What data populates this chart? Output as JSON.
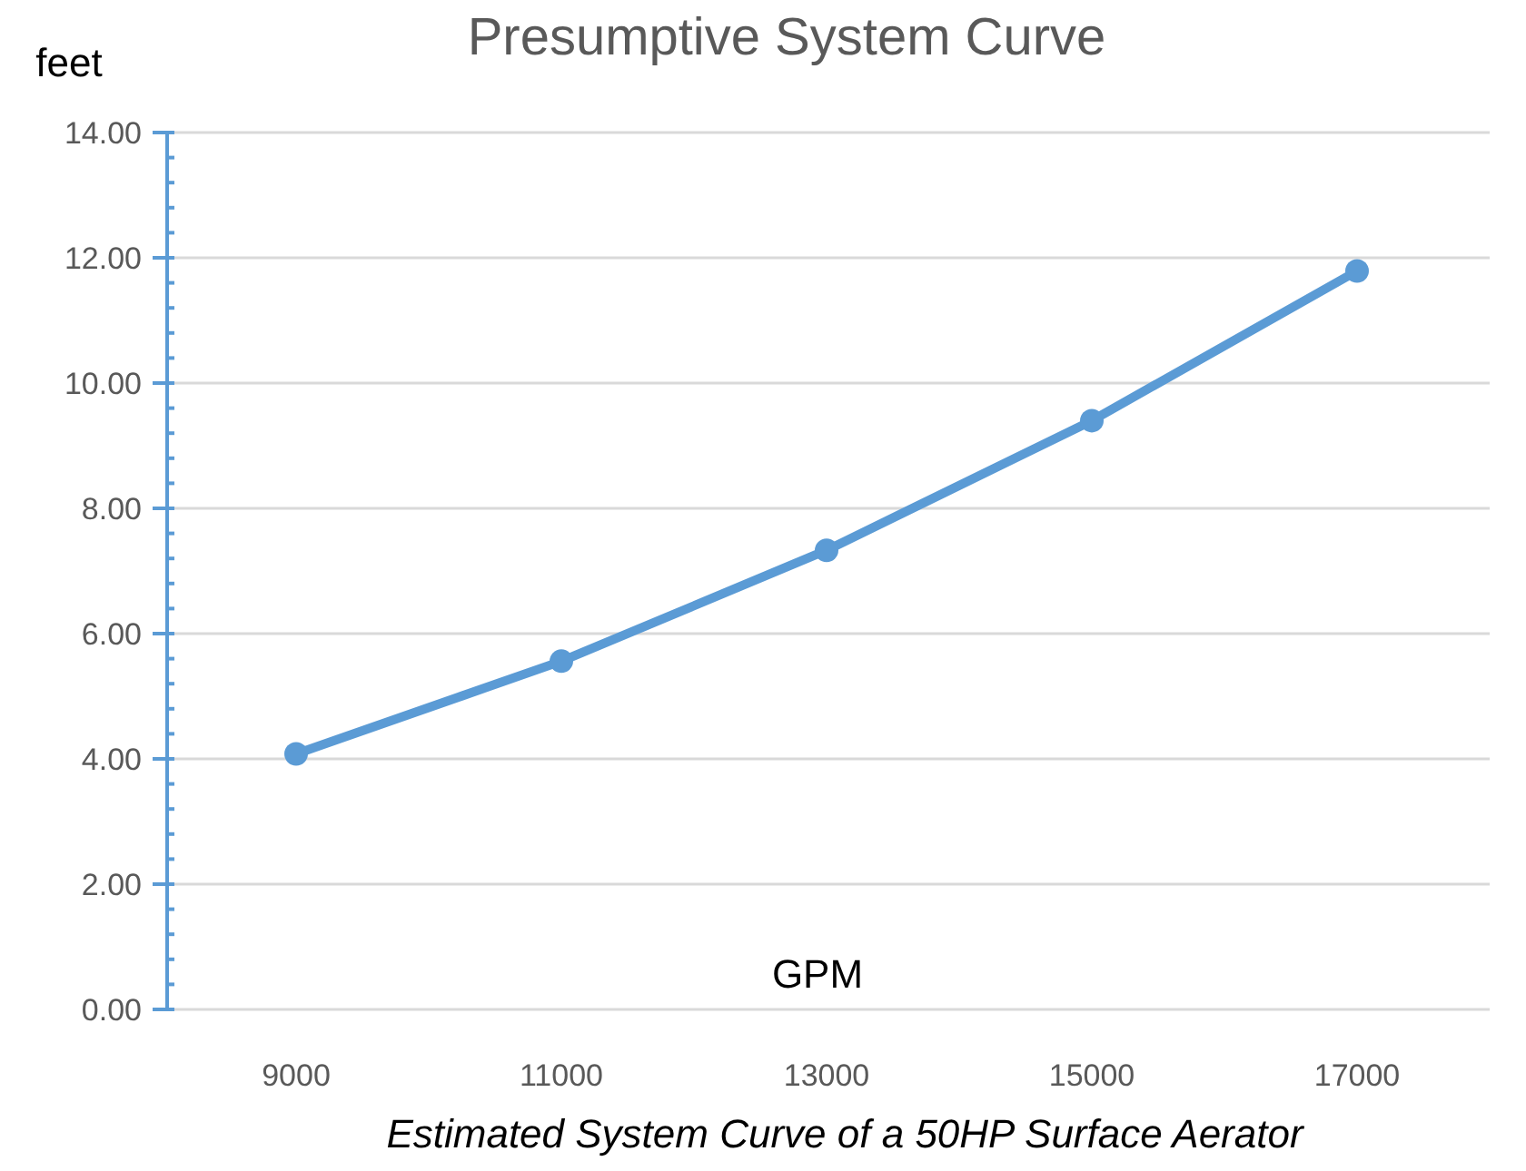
{
  "chart_data": {
    "type": "line",
    "title": "Presumptive System Curve",
    "ylabel": "feet",
    "xlabel": "GPM",
    "annotations": [
      "Estimated System Curve of a 50HP Surface Aerator"
    ],
    "categories": [
      "9000",
      "11000",
      "13000",
      "15000",
      "17000"
    ],
    "series": [
      {
        "color": "#5b9bd5",
        "values": [
          4.08,
          5.56,
          7.33,
          9.4,
          11.79
        ]
      }
    ],
    "ylim": [
      0,
      14
    ],
    "yticks": [
      {
        "value": 0,
        "label": "0.00"
      },
      {
        "value": 0.4,
        "label": null
      },
      {
        "value": 0.8,
        "label": null
      },
      {
        "value": 1.2,
        "label": null
      },
      {
        "value": 1.6,
        "label": null
      },
      {
        "value": 2,
        "label": "2.00"
      },
      {
        "value": 2.4,
        "label": null
      },
      {
        "value": 2.8,
        "label": null
      },
      {
        "value": 3.2,
        "label": null
      },
      {
        "value": 3.6,
        "label": null
      },
      {
        "value": 4,
        "label": "4.00"
      },
      {
        "value": 4.4,
        "label": null
      },
      {
        "value": 4.8,
        "label": null
      },
      {
        "value": 5.2,
        "label": null
      },
      {
        "value": 5.6,
        "label": null
      },
      {
        "value": 6,
        "label": "6.00"
      },
      {
        "value": 6.4,
        "label": null
      },
      {
        "value": 6.8,
        "label": null
      },
      {
        "value": 7.2,
        "label": null
      },
      {
        "value": 7.6,
        "label": null
      },
      {
        "value": 8,
        "label": "8.00"
      },
      {
        "value": 8.4,
        "label": null
      },
      {
        "value": 8.8,
        "label": null
      },
      {
        "value": 9.2,
        "label": null
      },
      {
        "value": 9.6,
        "label": null
      },
      {
        "value": 10,
        "label": "10.00"
      },
      {
        "value": 10.4,
        "label": null
      },
      {
        "value": 10.8,
        "label": null
      },
      {
        "value": 11.2,
        "label": null
      },
      {
        "value": 11.6,
        "label": null
      },
      {
        "value": 12,
        "label": "12.00"
      },
      {
        "value": 12.4,
        "label": null
      },
      {
        "value": 12.8,
        "label": null
      },
      {
        "value": 13.2,
        "label": null
      },
      {
        "value": 13.6,
        "label": null
      },
      {
        "value": 14,
        "label": "14.00"
      }
    ],
    "grid": "y",
    "marker": "circle",
    "line_style": "solid"
  }
}
